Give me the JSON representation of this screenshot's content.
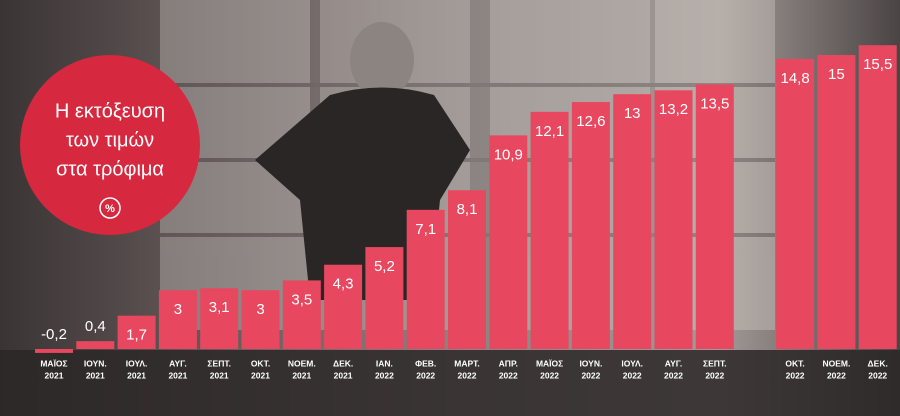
{
  "chart_data": {
    "type": "bar",
    "title_lines": [
      "Η εκτόξευση",
      "των τιμών",
      "στα τρόφιμα"
    ],
    "unit": "%",
    "color": "#e8485f",
    "categories": [
      [
        "ΜΑΪΟΣ",
        "2021"
      ],
      [
        "ΙΟΥΝ.",
        "2021"
      ],
      [
        "ΙΟΥΛ.",
        "2021"
      ],
      [
        "ΑΥΓ.",
        "2021"
      ],
      [
        "ΣΕΠΤ.",
        "2021"
      ],
      [
        "ΟΚΤ.",
        "2021"
      ],
      [
        "ΝΟΕΜ.",
        "2021"
      ],
      [
        "ΔΕΚ.",
        "2021"
      ],
      [
        "ΙΑΝ.",
        "2022"
      ],
      [
        "ΦΕΒ.",
        "2022"
      ],
      [
        "ΜΑΡΤ.",
        "2022"
      ],
      [
        "ΑΠΡ.",
        "2022"
      ],
      [
        "ΜΑΪΟΣ",
        "2022"
      ],
      [
        "ΙΟΥΝ.",
        "2022"
      ],
      [
        "ΙΟΥΛ.",
        "2022"
      ],
      [
        "ΑΥΓ.",
        "2022"
      ],
      [
        "ΣΕΠΤ.",
        "2022"
      ],
      [
        "ΟΚΤ.",
        "2022"
      ],
      [
        "ΝΟΕΜ.",
        "2022"
      ],
      [
        "ΔΕΚ.",
        "2022"
      ]
    ],
    "values": [
      -0.2,
      0.4,
      1.7,
      3,
      3.1,
      3,
      3.5,
      4.3,
      5.2,
      7.1,
      8.1,
      10.9,
      12.1,
      12.6,
      13,
      13.2,
      13.5,
      14.8,
      15,
      15.5
    ],
    "value_labels": [
      "-0,2",
      "0,4",
      "1,7",
      "3",
      "3,1",
      "3",
      "3,5",
      "4,3",
      "5,2",
      "7,1",
      "8,1",
      "10,9",
      "12,1",
      "12,6",
      "13",
      "13,2",
      "13,5",
      "14,8",
      "15",
      "15,5"
    ]
  }
}
